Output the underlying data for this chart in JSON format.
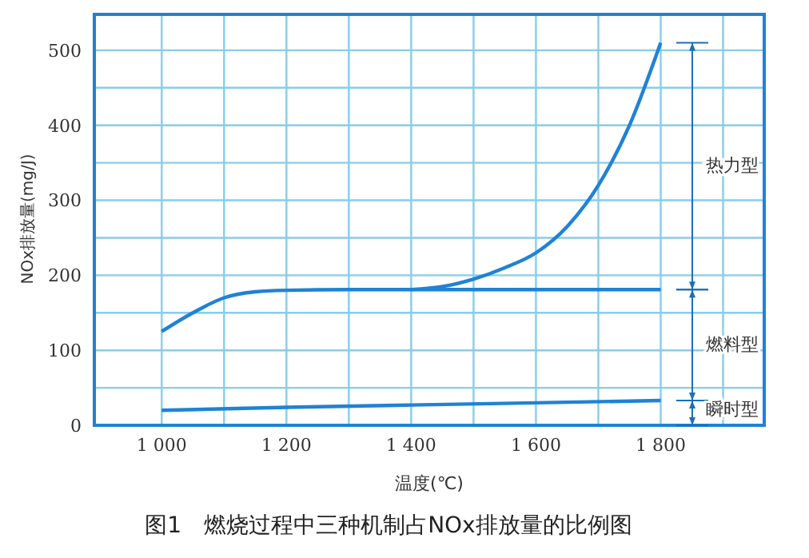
{
  "chart_data": {
    "type": "line",
    "title": "图1　燃烧过程中三种机制占NOx排放量的比例图",
    "xlabel": "温度(℃)",
    "ylabel": "NOx排放量(mg/J)",
    "annotations": [
      "热力型",
      "燃料型",
      "瞬时型"
    ],
    "series": [
      {
        "color": "#1f82d6",
        "x": [
          1400,
          1450,
          1500,
          1550,
          1600,
          1650,
          1700,
          1750,
          1800
        ],
        "values": [
          181,
          185,
          195,
          210,
          230,
          265,
          320,
          400,
          510
        ]
      },
      {
        "color": "#1f82d6",
        "x": [
          1000,
          1050,
          1100,
          1150,
          1200,
          1300,
          1400,
          1500,
          1600,
          1700,
          1800
        ],
        "values": [
          125,
          150,
          170,
          178,
          180,
          181,
          181,
          181,
          181,
          181,
          181
        ]
      },
      {
        "color": "#1f82d6",
        "x": [
          1000,
          1200,
          1400,
          1600,
          1800
        ],
        "values": [
          20,
          24,
          27,
          30,
          33
        ]
      }
    ],
    "xlim": [
      892,
      1966
    ],
    "ylim": [
      0,
      550
    ],
    "xticks": [
      {
        "value": 1000,
        "label": "1 000"
      },
      {
        "value": 1100,
        "label": null
      },
      {
        "value": 1200,
        "label": "1 200"
      },
      {
        "value": 1300,
        "label": null
      },
      {
        "value": 1400,
        "label": "1 400"
      },
      {
        "value": 1500,
        "label": null
      },
      {
        "value": 1600,
        "label": "1 600"
      },
      {
        "value": 1700,
        "label": null
      },
      {
        "value": 1800,
        "label": "1 800"
      },
      {
        "value": 1900,
        "label": null
      }
    ],
    "yticks": [
      0,
      {
        "value": 50,
        "label": null
      },
      100,
      {
        "value": 150,
        "label": null
      },
      200,
      {
        "value": 250,
        "label": null
      },
      300,
      {
        "value": 350,
        "label": null
      },
      400,
      {
        "value": 450,
        "label": null
      },
      500
    ],
    "grid": true,
    "marker": "none",
    "line_style": "solid",
    "legend": false
  }
}
